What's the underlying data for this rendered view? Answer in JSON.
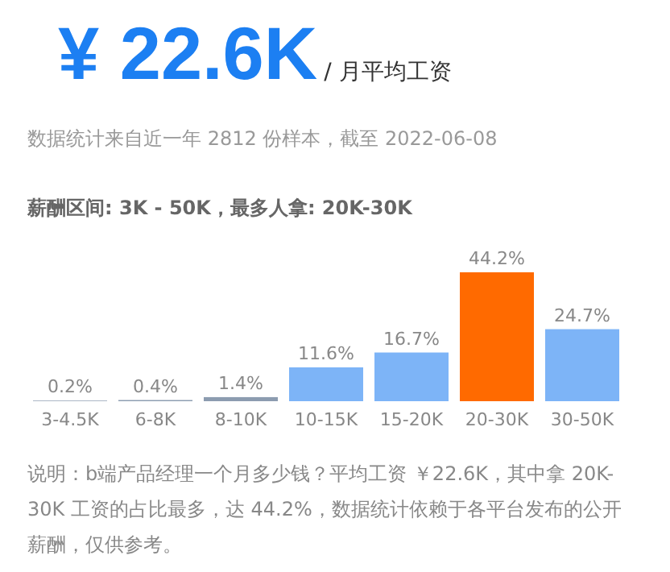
{
  "chart_data": {
    "type": "bar",
    "title": "¥ 22.6K",
    "subtitle": "/ 月平均工资",
    "annotations": [
      "数据统计来自近一年 2812 份样本，截至 2022-06-08",
      "薪酬区间: 3K - 50K，最多人拿: 20K-30K",
      "说明：b端产品经理一个月多少钱？平均工资 ￥22.6K，其中拿 20K-30K 工资的占比最多，达 44.2%，数据统计依赖于各平台发布的公开薪酬，仅供参考。"
    ],
    "categories": [
      "3-4.5K",
      "6-8K",
      "8-10K",
      "10-15K",
      "15-20K",
      "20-30K",
      "30-50K"
    ],
    "values": [
      0.2,
      0.4,
      1.4,
      11.6,
      16.7,
      44.2,
      24.7
    ],
    "colors": [
      "#8c9cb0",
      "#8c9cb0",
      "#8c9cb0",
      "#7db4f7",
      "#7db4f7",
      "#ff6a00",
      "#7db4f7"
    ],
    "value_labels": [
      "0.2%",
      "0.4%",
      "1.4%",
      "11.6%",
      "16.7%",
      "44.2%",
      "24.7%"
    ]
  }
}
